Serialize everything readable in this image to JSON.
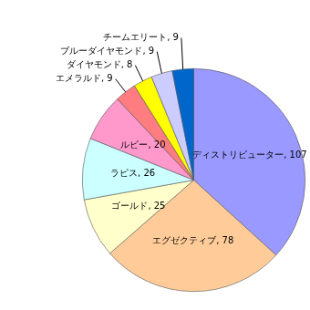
{
  "chart_data": {
    "type": "pie",
    "categories": [
      "ディストリビューター",
      "エグゼクティブ",
      "ゴールド",
      "ラピス",
      "ルビー",
      "エメラルド",
      "ダイヤモンド",
      "ブルーダイヤモンド",
      "チームエリート"
    ],
    "values": [
      107,
      78,
      25,
      26,
      20,
      9,
      8,
      9,
      9
    ],
    "value_labels": [
      "ディストリビューター, 107",
      "エグゼクティブ, 78",
      "ゴールド, 25",
      "ラピス, 26",
      "ルビー, 20",
      "エメラルド, 9",
      "ダイヤモンド, 8",
      "ブルーダイヤモンド, 9",
      "チームエリート, 9"
    ],
    "colors": [
      "#9999ff",
      "#ffcc99",
      "#ffffcc",
      "#ccffff",
      "#ff99cc",
      "#ff7c80",
      "#ffff00",
      "#ccccff",
      "#0066cc"
    ],
    "data_labels": true
  }
}
